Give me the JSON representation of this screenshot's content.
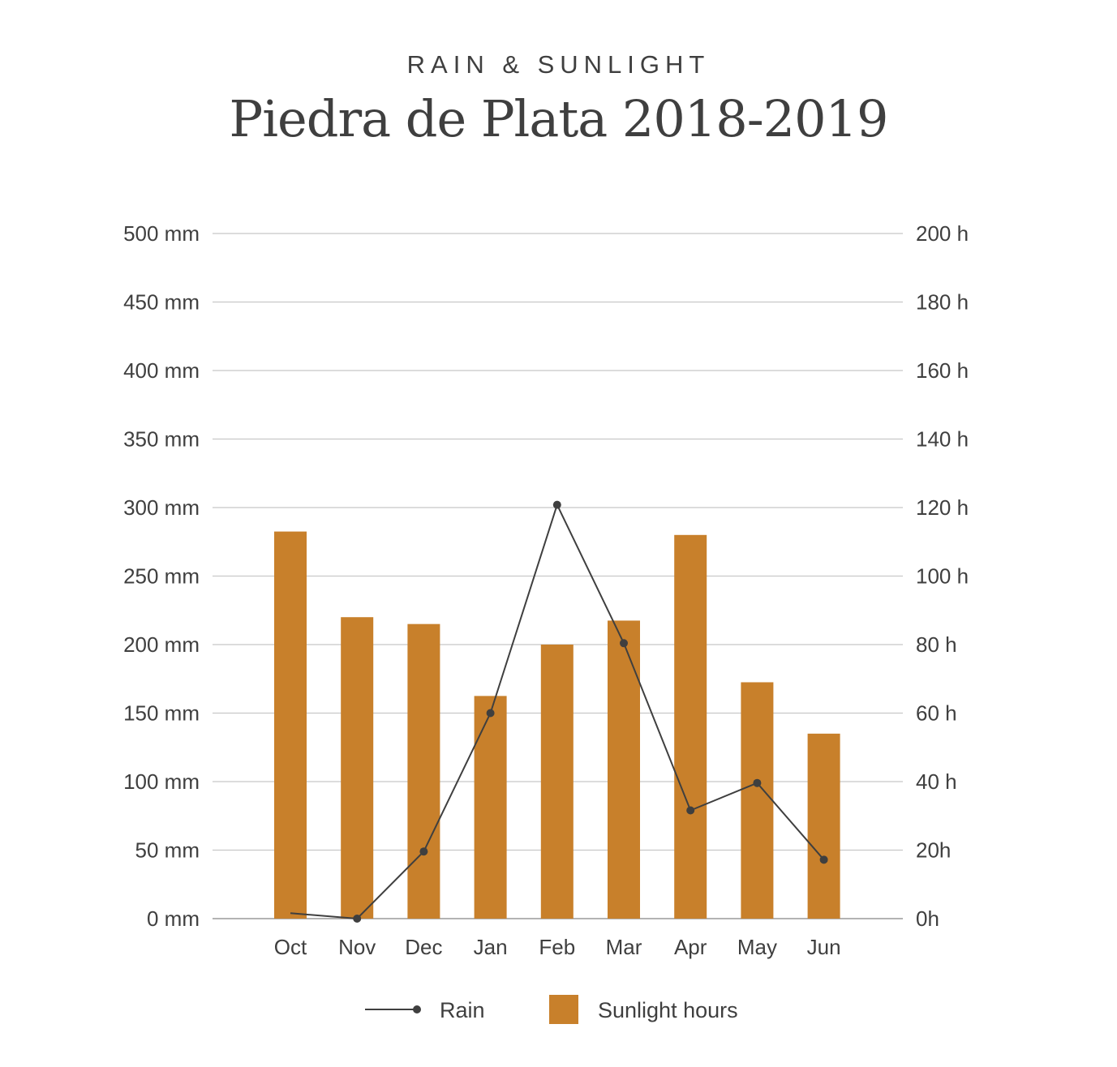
{
  "header": {
    "kicker": "RAIN & SUNLIGHT",
    "title": "Piedra de Plata 2018-2019"
  },
  "colors": {
    "bar": "#c8802b",
    "line": "#3f3f3f",
    "grid": "#c8c8c8",
    "text": "#3f3f3f"
  },
  "chart_data": {
    "type": "bar",
    "categories": [
      "Oct",
      "Nov",
      "Dec",
      "Jan",
      "Feb",
      "Mar",
      "Apr",
      "May",
      "Jun"
    ],
    "series": [
      {
        "name": "Sunlight hours",
        "type": "bar",
        "axis": "right",
        "values": [
          113,
          88,
          86,
          65,
          80,
          87,
          112,
          69,
          54
        ]
      },
      {
        "name": "Rain",
        "type": "line",
        "axis": "left",
        "values": [
          4,
          0,
          49,
          150,
          302,
          201,
          79,
          99,
          43
        ]
      }
    ],
    "y_left": {
      "range": [
        0,
        500
      ],
      "ticks": [
        0,
        50,
        100,
        150,
        200,
        250,
        300,
        350,
        400,
        450,
        500
      ],
      "tick_labels": [
        "0 mm",
        "50 mm",
        "100 mm",
        "150 mm",
        "200 mm",
        "250 mm",
        "300 mm",
        "350 mm",
        "400 mm",
        "450 mm",
        "500 mm"
      ]
    },
    "y_right": {
      "range": [
        0,
        200
      ],
      "ticks": [
        0,
        20,
        40,
        60,
        80,
        100,
        120,
        140,
        160,
        180,
        200
      ],
      "tick_labels": [
        "0h",
        "20h",
        "40 h",
        "60 h",
        "80 h",
        "100 h",
        "120 h",
        "140 h",
        "160 h",
        "180 h",
        "200 h"
      ]
    },
    "grid": true,
    "legend_position": "bottom",
    "legend": [
      "Rain",
      "Sunlight hours"
    ]
  }
}
